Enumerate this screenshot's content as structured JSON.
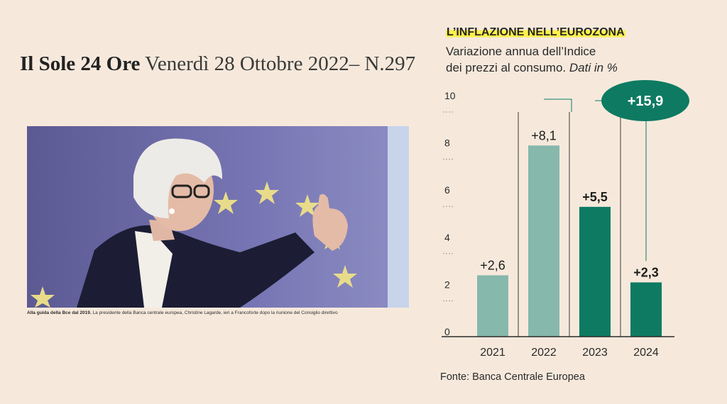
{
  "header": {
    "brand": "Il Sole 24 Ore",
    "dateline": "Venerdì 28 Ottobre 2022– N.297"
  },
  "photo": {
    "caption_bold": "Alla guida della Bce dal 2019.",
    "caption_text": "La presidente della Banca centrale europea, Christine Lagarde, ieri a Francoforte dopo la riunione del Consiglio direttivo"
  },
  "colors": {
    "light_bar": "#86b8ab",
    "dark_bar": "#0e7a62",
    "bubble": "#0e7a62",
    "highlight": "#fff04a"
  },
  "chart_data": {
    "type": "bar",
    "title": "L’INFLAZIONE NELL’EUROZONA",
    "subtitle_line1": "Variazione annua dell’Indice",
    "subtitle_line2": "dei prezzi al consumo.",
    "subtitle_italic": "Dati in %",
    "categories": [
      "2021",
      "2022",
      "2023",
      "2024"
    ],
    "values": [
      2.6,
      8.1,
      5.5,
      2.3
    ],
    "value_labels": [
      "+2,6",
      "+8,1",
      "+5,5",
      "+2,3"
    ],
    "bar_shades": [
      "light",
      "light",
      "dark",
      "dark"
    ],
    "y_ticks": [
      0,
      2,
      4,
      6,
      8,
      10
    ],
    "ylim": [
      0,
      10
    ],
    "cumulative_label": "+15,9",
    "source": "Fonte: Banca Centrale Europea"
  }
}
